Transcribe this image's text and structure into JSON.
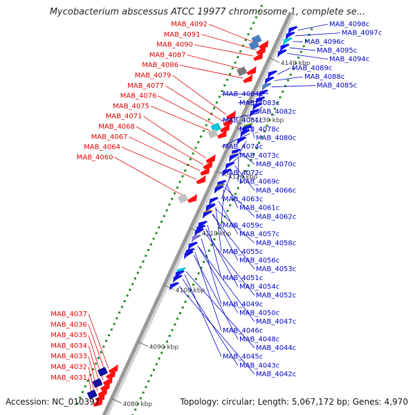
{
  "title": "Mycobacterium abscessus ATCC 19977 chromosome 1, complete se...",
  "footer": {
    "accession": "Accession: NC_010397",
    "summary": "Topology: circular; Length: 5,067,172 bp; Genes: 4,970"
  },
  "colors": {
    "forward_label": "#e00000",
    "reverse_label": "#0000c8",
    "forward_gene": "#ff1010",
    "reverse_gene": "#1414e6",
    "backbone": "#999999",
    "tick": "#228b22"
  },
  "kbp_marks": [
    {
      "label": "4080 kbp",
      "kbp": 4080
    },
    {
      "label": "4090 kbp",
      "kbp": 4090
    },
    {
      "label": "4100 kbp",
      "kbp": 4100
    },
    {
      "label": "4110 kbp",
      "kbp": 4110
    },
    {
      "label": "4120 kbp",
      "kbp": 4120
    },
    {
      "label": "4130 kbp",
      "kbp": 4130
    },
    {
      "label": "4140 kbp",
      "kbp": 4140
    }
  ],
  "forward_genes": [
    {
      "name": "MAB_4092",
      "kbp": 4141.6
    },
    {
      "name": "MAB_4091",
      "kbp": 4140.6
    },
    {
      "name": "MAB_4090",
      "kbp": 4139.5
    },
    {
      "name": "MAB_4087",
      "kbp": 4137.0
    },
    {
      "name": "MAB_4086",
      "kbp": 4135.6
    },
    {
      "name": "MAB_4079",
      "kbp": 4129.2
    },
    {
      "name": "MAB_4077",
      "kbp": 4128.0
    },
    {
      "name": "MAB_4076",
      "kbp": 4126.9
    },
    {
      "name": "MAB_4075",
      "kbp": 4125.8
    },
    {
      "name": "MAB_4071",
      "kbp": 4121.5
    },
    {
      "name": "MAB_4068",
      "kbp": 4120.4
    },
    {
      "name": "MAB_4067",
      "kbp": 4119.3
    },
    {
      "name": "MAB_4064",
      "kbp": 4117.8
    },
    {
      "name": "MAB_4060",
      "kbp": 4114.5
    },
    {
      "name": "MAB_4037",
      "kbp": 4084.5
    },
    {
      "name": "MAB_4036",
      "kbp": 4083.5
    },
    {
      "name": "MAB_4035",
      "kbp": 4082.4
    },
    {
      "name": "MAB_4034",
      "kbp": 4081.4
    },
    {
      "name": "MAB_4033",
      "kbp": 4080.4
    },
    {
      "name": "MAB_4032",
      "kbp": 4079.5
    },
    {
      "name": "MAB_4031",
      "kbp": 4078.6
    }
  ],
  "reverse_genes": [
    {
      "name": "MAB_4098c",
      "kbp": 4145.6
    },
    {
      "name": "MAB_4097c",
      "kbp": 4144.6
    },
    {
      "name": "MAB_4096c",
      "kbp": 4143.6
    },
    {
      "name": "MAB_4095c",
      "kbp": 4142.5
    },
    {
      "name": "MAB_4094c",
      "kbp": 4141.5
    },
    {
      "name": "MAB_4089c",
      "kbp": 4137.8
    },
    {
      "name": "MAB_4088c",
      "kbp": 4136.7
    },
    {
      "name": "MAB_4085c",
      "kbp": 4135.6
    },
    {
      "name": "MAB_4084c",
      "kbp": 4134.4
    },
    {
      "name": "MAB_4083c",
      "kbp": 4133.2
    },
    {
      "name": "MAB_4082c",
      "kbp": 4132.1
    },
    {
      "name": "MAB_4081c",
      "kbp": 4131.0
    },
    {
      "name": "MAB_4078c",
      "kbp": 4128.5
    },
    {
      "name": "MAB_4080c",
      "kbp": 4128.2
    },
    {
      "name": "MAB_4074c",
      "kbp": 4127.4
    },
    {
      "name": "MAB_4073c",
      "kbp": 4126.1
    },
    {
      "name": "MAB_4070c",
      "kbp": 4124.0
    },
    {
      "name": "MAB_4072c",
      "kbp": 4123.4
    },
    {
      "name": "MAB_4069c",
      "kbp": 4123.1
    },
    {
      "name": "MAB_4066c",
      "kbp": 4121.7
    },
    {
      "name": "MAB_4063c",
      "kbp": 4120.5
    },
    {
      "name": "MAB_4061c",
      "kbp": 4118.5
    },
    {
      "name": "MAB_4062c",
      "kbp": 4117.9
    },
    {
      "name": "MAB_4059c",
      "kbp": 4117.5
    },
    {
      "name": "MAB_4057c",
      "kbp": 4115.5
    },
    {
      "name": "MAB_4058c",
      "kbp": 4114.2
    },
    {
      "name": "MAB_4055c",
      "kbp": 4114.4
    },
    {
      "name": "MAB_4056c",
      "kbp": 4113.3
    },
    {
      "name": "MAB_4053c",
      "kbp": 4113.1
    },
    {
      "name": "MAB_4051c",
      "kbp": 4111.3
    },
    {
      "name": "MAB_4054c",
      "kbp": 4110.6
    },
    {
      "name": "MAB_4052c",
      "kbp": 4110.0
    },
    {
      "name": "MAB_4049c",
      "kbp": 4108.9
    },
    {
      "name": "MAB_4050c",
      "kbp": 4107.6
    },
    {
      "name": "MAB_4047c",
      "kbp": 4107.6
    },
    {
      "name": "MAB_4046c",
      "kbp": 4106.5
    },
    {
      "name": "MAB_4048c",
      "kbp": 4106.0
    },
    {
      "name": "MAB_4044c",
      "kbp": 4103.1
    },
    {
      "name": "MAB_4045c",
      "kbp": 4102.6
    },
    {
      "name": "MAB_4043c",
      "kbp": 4101.8
    },
    {
      "name": "MAB_4042c",
      "kbp": 4100.5
    }
  ]
}
